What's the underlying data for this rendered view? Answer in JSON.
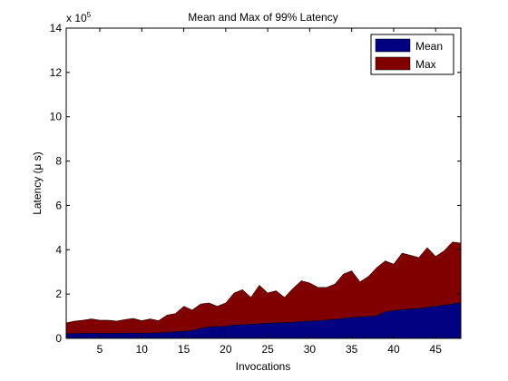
{
  "chart_data": {
    "type": "area",
    "title": "Mean and Max of 99% Latency",
    "xlabel": "Invocations",
    "ylabel": "Latency (μ s)",
    "y_multiplier": "x 10",
    "y_multiplier_exponent": "5",
    "xlim": [
      1,
      48
    ],
    "ylim": [
      0,
      14
    ],
    "xticks": [
      5,
      10,
      15,
      20,
      25,
      30,
      35,
      40,
      45
    ],
    "yticks": [
      0,
      2,
      4,
      6,
      8,
      10,
      12,
      14
    ],
    "grid": false,
    "legend_position": "top-right",
    "x": [
      1,
      2,
      3,
      4,
      5,
      6,
      7,
      8,
      9,
      10,
      11,
      12,
      13,
      14,
      15,
      16,
      17,
      18,
      19,
      20,
      21,
      22,
      23,
      24,
      25,
      26,
      27,
      28,
      29,
      30,
      31,
      32,
      33,
      34,
      35,
      36,
      37,
      38,
      39,
      40,
      41,
      42,
      43,
      44,
      45,
      46,
      47,
      48
    ],
    "series": [
      {
        "name": "Mean",
        "color": "#000080",
        "values": [
          0.22,
          0.22,
          0.23,
          0.23,
          0.23,
          0.23,
          0.23,
          0.24,
          0.24,
          0.24,
          0.24,
          0.25,
          0.27,
          0.3,
          0.32,
          0.35,
          0.45,
          0.52,
          0.53,
          0.55,
          0.6,
          0.62,
          0.64,
          0.66,
          0.68,
          0.7,
          0.71,
          0.73,
          0.76,
          0.78,
          0.8,
          0.83,
          0.86,
          0.9,
          0.95,
          0.97,
          0.99,
          1.02,
          1.2,
          1.25,
          1.3,
          1.32,
          1.35,
          1.4,
          1.45,
          1.5,
          1.55,
          1.62
        ]
      },
      {
        "name": "Max",
        "color": "#800000",
        "values": [
          0.7,
          0.78,
          0.82,
          0.88,
          0.82,
          0.82,
          0.78,
          0.85,
          0.9,
          0.8,
          0.88,
          0.8,
          1.05,
          1.12,
          1.45,
          1.28,
          1.55,
          1.6,
          1.45,
          1.6,
          2.05,
          2.2,
          1.85,
          2.4,
          2.05,
          2.15,
          1.85,
          2.25,
          2.6,
          2.5,
          2.3,
          2.3,
          2.45,
          2.9,
          3.05,
          2.55,
          2.8,
          3.2,
          3.5,
          3.35,
          3.85,
          3.75,
          3.65,
          4.1,
          3.7,
          3.95,
          4.35,
          4.3
        ]
      }
    ]
  }
}
